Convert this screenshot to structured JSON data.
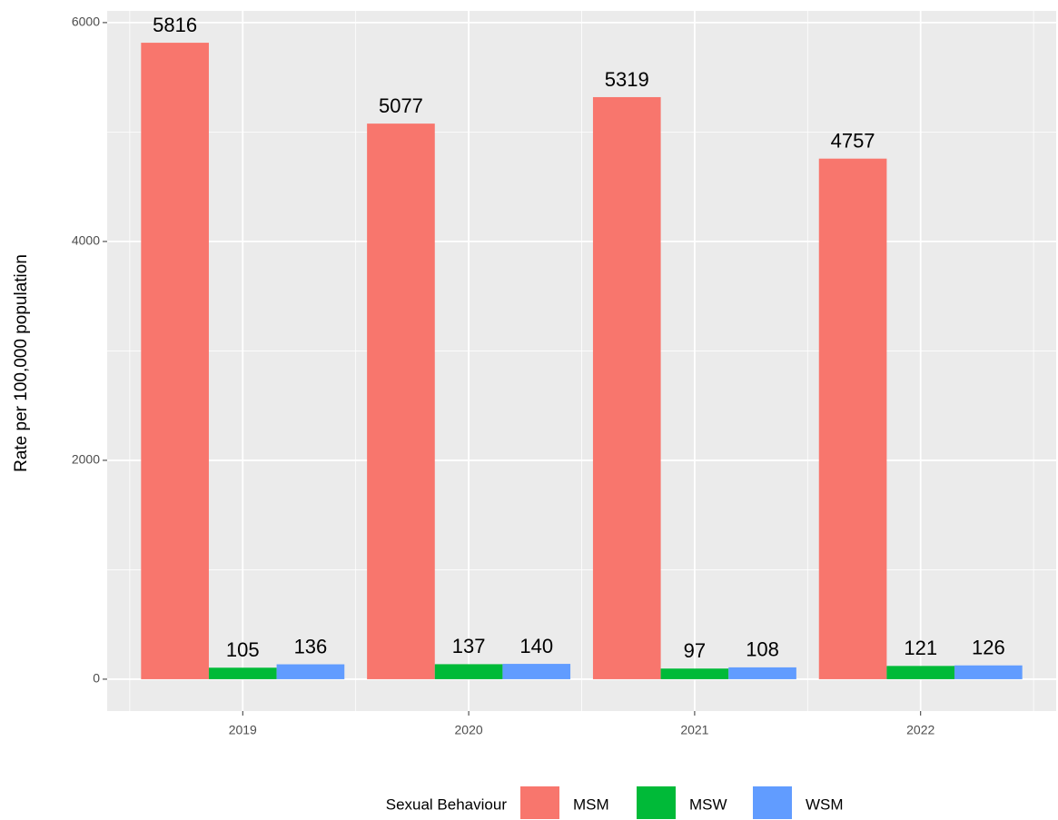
{
  "chart_data": {
    "type": "bar",
    "y_label": "Rate per 100,000 population",
    "legend_title": "Sexual Behaviour",
    "legend_position": "bottom",
    "categories": [
      "2019",
      "2020",
      "2021",
      "2022"
    ],
    "series": [
      {
        "name": "MSM",
        "color": "#F8766D",
        "values": [
          5816,
          5077,
          5319,
          4757
        ]
      },
      {
        "name": "MSW",
        "color": "#00BA38",
        "values": [
          105,
          137,
          97,
          121
        ]
      },
      {
        "name": "WSM",
        "color": "#619CFF",
        "values": [
          136,
          140,
          108,
          126
        ]
      }
    ],
    "ylim": [
      -291,
      6107
    ],
    "yticks": [
      0,
      2000,
      4000,
      6000
    ],
    "grid": true,
    "minor_grid": true,
    "panel_color": "#EBEBEB"
  }
}
